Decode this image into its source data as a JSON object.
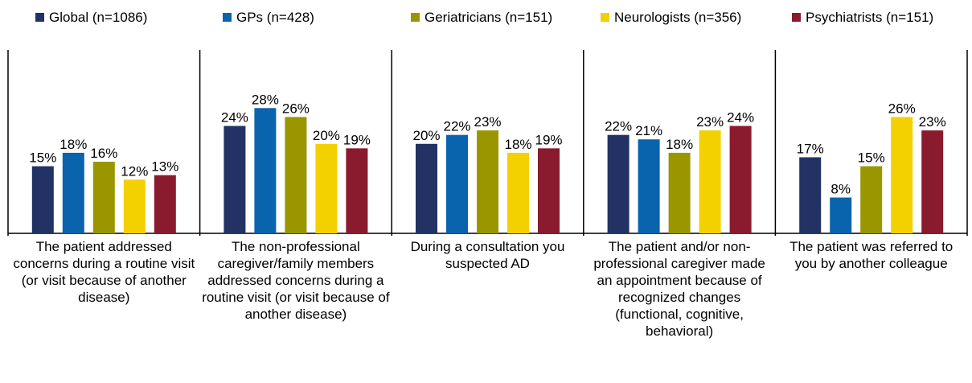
{
  "chart_data": {
    "type": "bar",
    "categories": [
      "The patient addressed concerns during a routine visit (or visit because of another disease)",
      "The non-professional caregiver/family members addressed concerns during a routine visit (or visit because of another disease)",
      "During a consultation you suspected AD",
      "The patient and/or non-professional caregiver made an appointment because of recognized changes (functional, cognitive, behavioral)",
      "The patient was referred to you by another colleague"
    ],
    "series": [
      {
        "name": "Global (n=1086)",
        "color": "#233264",
        "values": [
          15,
          24,
          20,
          22,
          17
        ],
        "value_labels": [
          "15%",
          "24%",
          "20%",
          "22%",
          "17%"
        ]
      },
      {
        "name": "GPs (n=428)",
        "color": "#0a63ad",
        "values": [
          18,
          28,
          22,
          21,
          8
        ],
        "value_labels": [
          "18%",
          "28%",
          "22%",
          "21%",
          "8%"
        ]
      },
      {
        "name": "Geriatricians (n=151)",
        "color": "#999600",
        "values": [
          16,
          26,
          23,
          18,
          15
        ],
        "value_labels": [
          "16%",
          "26%",
          "23%",
          "18%",
          "15%"
        ]
      },
      {
        "name": "Neurologists (n=356)",
        "color": "#f3d000",
        "values": [
          12,
          20,
          18,
          23,
          26
        ],
        "value_labels": [
          "12%",
          "20%",
          "18%",
          "23%",
          "26%"
        ]
      },
      {
        "name": "Psychiatrists (n=151)",
        "color": "#8a1a2e",
        "values": [
          13,
          19,
          19,
          24,
          23
        ],
        "value_labels": [
          "13%",
          "19%",
          "19%",
          "24%",
          "23%"
        ]
      }
    ],
    "ylim": [
      0,
      41
    ],
    "legend": "top"
  }
}
